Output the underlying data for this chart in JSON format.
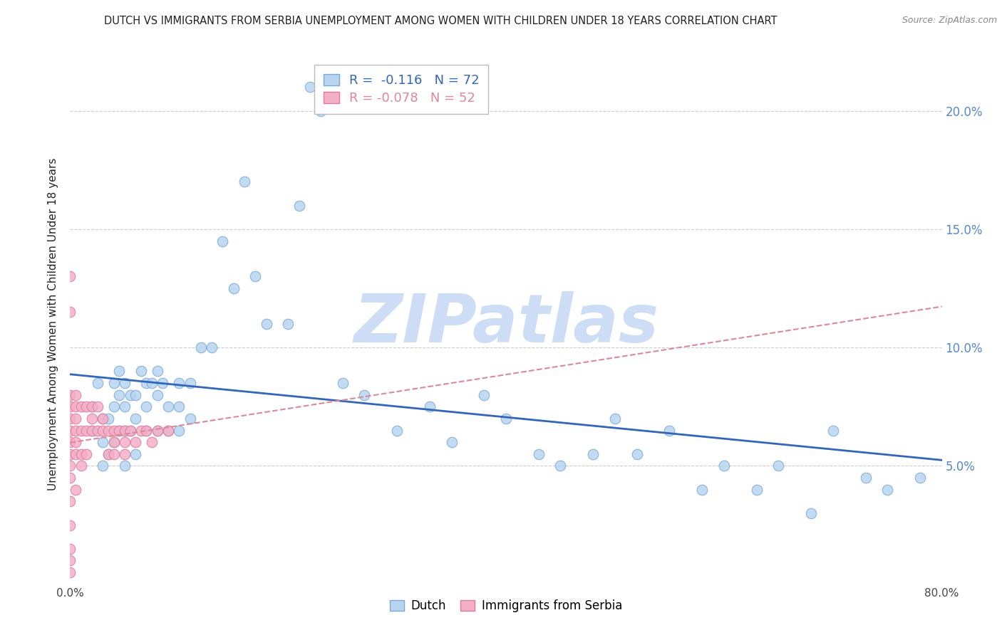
{
  "title": "DUTCH VS IMMIGRANTS FROM SERBIA UNEMPLOYMENT AMONG WOMEN WITH CHILDREN UNDER 18 YEARS CORRELATION CHART",
  "source": "Source: ZipAtlas.com",
  "ylabel": "Unemployment Among Women with Children Under 18 years",
  "watermark": "ZIPatlas",
  "legend_dutch_R": "-0.116",
  "legend_dutch_N": "72",
  "legend_serbia_R": "-0.078",
  "legend_serbia_N": "52",
  "xlim": [
    0.0,
    0.8
  ],
  "ylim": [
    0.0,
    0.22
  ],
  "dutch_color": "#b8d4f0",
  "dutch_edge_color": "#7aaad4",
  "serbia_color": "#f4afc8",
  "serbia_edge_color": "#e07898",
  "trend_dutch_color": "#3366bb",
  "trend_serbia_color": "#dd8899",
  "background_color": "#ffffff",
  "grid_color": "#cccccc",
  "title_color": "#222222",
  "axis_label_color": "#444444",
  "right_axis_color": "#5588cc",
  "watermark_color": "#ccddf5",
  "marker_size": 110,
  "dutch_x": [
    0.02,
    0.02,
    0.025,
    0.03,
    0.03,
    0.03,
    0.035,
    0.035,
    0.04,
    0.04,
    0.04,
    0.045,
    0.045,
    0.045,
    0.05,
    0.05,
    0.05,
    0.05,
    0.055,
    0.055,
    0.06,
    0.06,
    0.06,
    0.065,
    0.07,
    0.07,
    0.07,
    0.075,
    0.08,
    0.08,
    0.08,
    0.085,
    0.09,
    0.09,
    0.1,
    0.1,
    0.1,
    0.11,
    0.11,
    0.12,
    0.13,
    0.14,
    0.15,
    0.16,
    0.17,
    0.18,
    0.2,
    0.21,
    0.22,
    0.23,
    0.25,
    0.27,
    0.3,
    0.33,
    0.35,
    0.38,
    0.4,
    0.43,
    0.45,
    0.48,
    0.5,
    0.52,
    0.55,
    0.58,
    0.6,
    0.63,
    0.65,
    0.68,
    0.7,
    0.73,
    0.75,
    0.78
  ],
  "dutch_y": [
    0.075,
    0.065,
    0.085,
    0.07,
    0.06,
    0.05,
    0.07,
    0.055,
    0.085,
    0.075,
    0.06,
    0.09,
    0.08,
    0.065,
    0.085,
    0.075,
    0.065,
    0.05,
    0.08,
    0.065,
    0.08,
    0.07,
    0.055,
    0.09,
    0.085,
    0.075,
    0.065,
    0.085,
    0.09,
    0.08,
    0.065,
    0.085,
    0.075,
    0.065,
    0.085,
    0.075,
    0.065,
    0.085,
    0.07,
    0.1,
    0.1,
    0.145,
    0.125,
    0.17,
    0.13,
    0.11,
    0.11,
    0.16,
    0.21,
    0.2,
    0.085,
    0.08,
    0.065,
    0.075,
    0.06,
    0.08,
    0.07,
    0.055,
    0.05,
    0.055,
    0.07,
    0.055,
    0.065,
    0.04,
    0.05,
    0.04,
    0.05,
    0.03,
    0.065,
    0.045,
    0.04,
    0.045
  ],
  "serbia_x": [
    0.0,
    0.0,
    0.0,
    0.0,
    0.0,
    0.0,
    0.0,
    0.0,
    0.0,
    0.0,
    0.0,
    0.0,
    0.0,
    0.0,
    0.0,
    0.005,
    0.005,
    0.005,
    0.005,
    0.005,
    0.005,
    0.005,
    0.01,
    0.01,
    0.01,
    0.01,
    0.015,
    0.015,
    0.015,
    0.02,
    0.02,
    0.02,
    0.025,
    0.025,
    0.03,
    0.03,
    0.035,
    0.035,
    0.04,
    0.04,
    0.04,
    0.045,
    0.05,
    0.05,
    0.05,
    0.055,
    0.06,
    0.065,
    0.07,
    0.075,
    0.08,
    0.09
  ],
  "serbia_y": [
    0.13,
    0.115,
    0.08,
    0.075,
    0.07,
    0.065,
    0.06,
    0.055,
    0.05,
    0.045,
    0.035,
    0.025,
    0.015,
    0.01,
    0.005,
    0.08,
    0.075,
    0.07,
    0.065,
    0.06,
    0.055,
    0.04,
    0.075,
    0.065,
    0.055,
    0.05,
    0.075,
    0.065,
    0.055,
    0.075,
    0.07,
    0.065,
    0.075,
    0.065,
    0.07,
    0.065,
    0.065,
    0.055,
    0.065,
    0.06,
    0.055,
    0.065,
    0.065,
    0.06,
    0.055,
    0.065,
    0.06,
    0.065,
    0.065,
    0.06,
    0.065,
    0.065
  ]
}
